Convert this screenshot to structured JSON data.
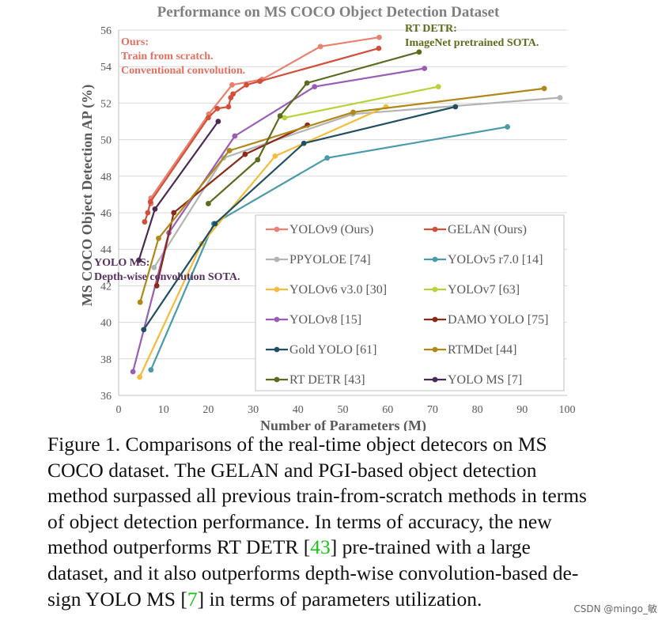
{
  "chart_data": {
    "type": "line",
    "title": "Performance on MS COCO Object Detection Dataset",
    "xlabel": "Number of Parameters (M)",
    "ylabel": "MS COCO Object Detection AP (%)",
    "xlim": [
      0,
      100
    ],
    "ylim": [
      36,
      56
    ],
    "xticks": [
      "0",
      "10",
      "20",
      "30",
      "40",
      "50",
      "60",
      "70",
      "80",
      "90",
      "100"
    ],
    "yticks": [
      "36",
      "38",
      "40",
      "42",
      "44",
      "46",
      "48",
      "50",
      "52",
      "54",
      "56"
    ],
    "grid": "horizontal",
    "legend_position": "bottom-right",
    "annotations": [
      {
        "lines": [
          "Ours:",
          "Train from scratch.",
          "Conventional convolution."
        ],
        "color": "#e46f5f"
      },
      {
        "lines": [
          "RT DETR:",
          "ImageNet pretrained SOTA."
        ],
        "color": "#5d6b1c"
      },
      {
        "lines": [
          "YOLO MS:",
          "Depth-wise convolution SOTA."
        ],
        "color": "#55305e"
      }
    ],
    "series": [
      {
        "name": "YOLOv9 (Ours)",
        "color": "#e98070",
        "x": [
          7.2,
          7.2,
          20.1,
          25.3,
          32.0,
          45.0,
          58.1
        ],
        "y": [
          46.5,
          46.8,
          51.4,
          53.0,
          53.3,
          55.1,
          55.6
        ]
      },
      {
        "name": "GELAN (Ours)",
        "color": "#d24f3a",
        "x": [
          5.8,
          6.5,
          7.1,
          20.0,
          22.0,
          24.5,
          25.0,
          25.5,
          28.5,
          31.5,
          58.0
        ],
        "y": [
          45.5,
          46.0,
          46.6,
          51.2,
          51.7,
          51.8,
          52.3,
          52.5,
          53.0,
          53.2,
          55.0
        ]
      },
      {
        "name": "PPYOLOE [74]",
        "color": "#b3b3b3",
        "x": [
          7.9,
          23.4,
          52.2,
          98.4
        ],
        "y": [
          43.0,
          49.0,
          51.4,
          52.3
        ]
      },
      {
        "name": "YOLOv5 r7.0 [14]",
        "color": "#4a9baa",
        "x": [
          7.2,
          21.2,
          46.5,
          86.7
        ],
        "y": [
          37.4,
          45.4,
          49.0,
          50.7
        ]
      },
      {
        "name": "YOLOv6 v3.0 [30]",
        "color": "#f3bc3b",
        "x": [
          4.7,
          18.5,
          34.9,
          59.6
        ],
        "y": [
          37.0,
          44.3,
          49.1,
          51.8
        ]
      },
      {
        "name": "YOLOv7 [63]",
        "color": "#b8d23c",
        "x": [
          37.0,
          71.3
        ],
        "y": [
          51.2,
          52.9
        ]
      },
      {
        "name": "YOLOv8 [15]",
        "color": "#9a5cb5",
        "x": [
          3.2,
          11.2,
          25.9,
          43.7,
          68.2
        ],
        "y": [
          37.3,
          44.9,
          50.2,
          52.9,
          53.9
        ]
      },
      {
        "name": "DAMO YOLO [75]",
        "color": "#8a2a18",
        "x": [
          8.5,
          12.3,
          28.2,
          42.1
        ],
        "y": [
          42.0,
          46.0,
          49.2,
          50.8
        ]
      },
      {
        "name": "Gold YOLO [61]",
        "color": "#1f4f61",
        "x": [
          5.6,
          21.5,
          41.3,
          75.1
        ],
        "y": [
          39.6,
          45.4,
          49.8,
          51.8
        ]
      },
      {
        "name": "RTMDet [44]",
        "color": "#b18717",
        "x": [
          4.8,
          8.9,
          24.7,
          52.3,
          94.9
        ],
        "y": [
          41.1,
          44.6,
          49.4,
          51.5,
          52.8
        ]
      },
      {
        "name": "RT DETR [43]",
        "color": "#5b6b1f",
        "x": [
          20.0,
          31.0,
          36.0,
          42.0,
          67.0
        ],
        "y": [
          46.5,
          48.9,
          51.3,
          53.1,
          54.8
        ]
      },
      {
        "name": "YOLO MS [7]",
        "color": "#4a2a55",
        "x": [
          4.5,
          8.1,
          22.2
        ],
        "y": [
          43.4,
          46.2,
          51.0
        ]
      }
    ]
  },
  "caption": {
    "line1": "Figure 1.  Comparisons of the real-time object detecors on MS",
    "line2": "COCO dataset.  The GELAN and PGI-based object detection",
    "line3": "method surpassed all previous train-from-scratch methods in terms",
    "line4": "of object detection performance.  In terms of accuracy, the new",
    "line5a": "method outperforms RT DETR [",
    "ref1": "43",
    "line5b": "] pre-trained with a large",
    "line6": "dataset, and it also outperforms depth-wise convolution-based de-",
    "line7a": "sign YOLO MS [",
    "ref2": "7",
    "line7b": "] in terms of parameters utilization."
  },
  "watermark": "CSDN @mingo_敏"
}
